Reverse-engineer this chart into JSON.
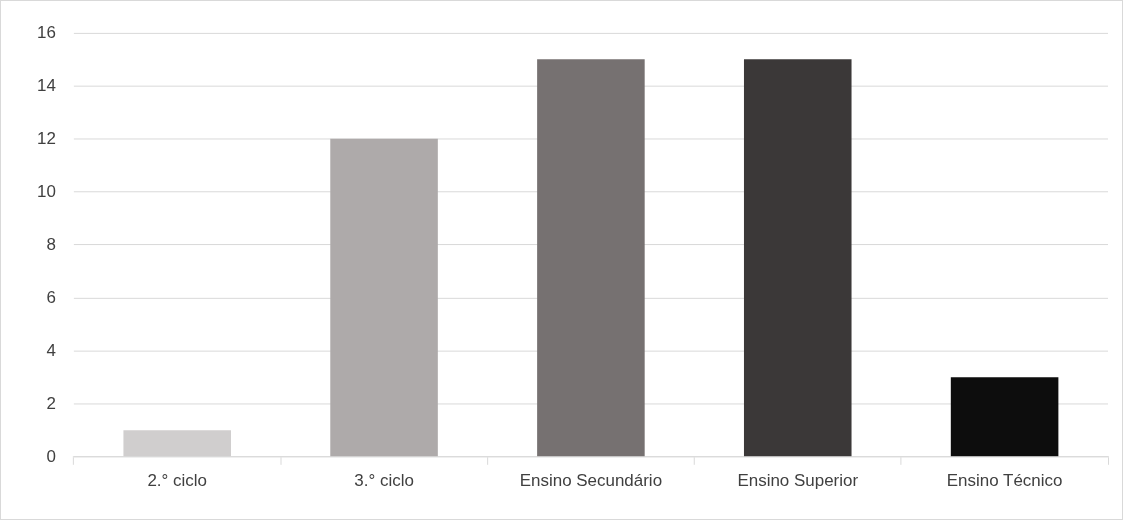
{
  "chart_data": {
    "type": "bar",
    "categories": [
      "2.° ciclo",
      "3.° ciclo",
      "Ensino Secundário",
      "Ensino Superior",
      "Ensino Técnico"
    ],
    "values": [
      1,
      12,
      15,
      15,
      3
    ],
    "colors": [
      "#d0cece",
      "#aeaaaa",
      "#767171",
      "#3b3838",
      "#0d0d0d"
    ],
    "ylim": [
      0,
      16
    ],
    "yticks": [
      0,
      2,
      4,
      6,
      8,
      10,
      12,
      14,
      16
    ],
    "grid": "y",
    "legend": false
  }
}
